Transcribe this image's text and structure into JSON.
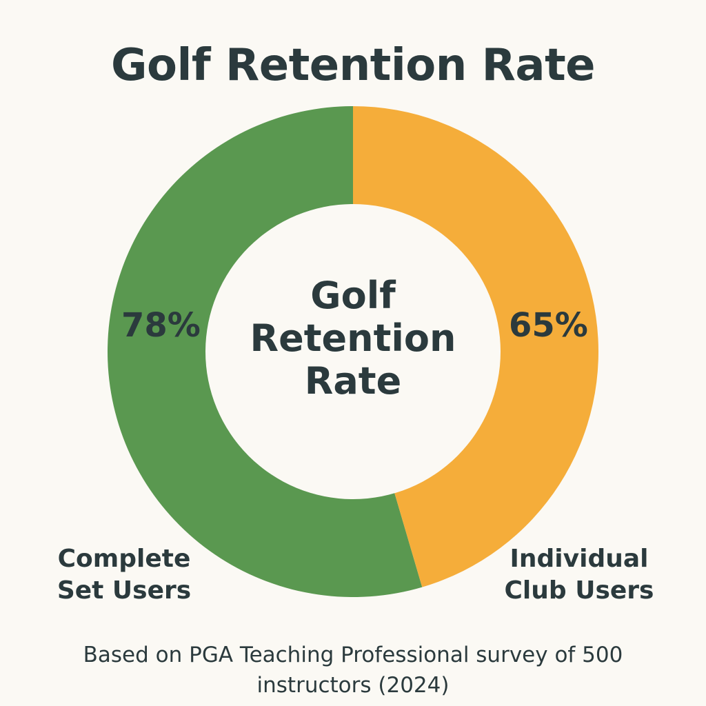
{
  "chart_data": {
    "type": "pie",
    "variant": "donut",
    "title": "Golf Retention Rate",
    "center_text": [
      "Golf",
      "Retention",
      "Rate"
    ],
    "categories": [
      "Complete Set Users",
      "Individual Club Users"
    ],
    "legend_lines": [
      [
        "Complete",
        "Set Users"
      ],
      [
        "Individual",
        "Club Users"
      ]
    ],
    "values": [
      78,
      65
    ],
    "value_labels": [
      "78%",
      "65%"
    ],
    "colors": [
      "#5a9850",
      "#f5ad3a"
    ],
    "source_note": [
      "Based on PGA Teaching Professional survey of 500",
      "instructors (2024)"
    ]
  }
}
